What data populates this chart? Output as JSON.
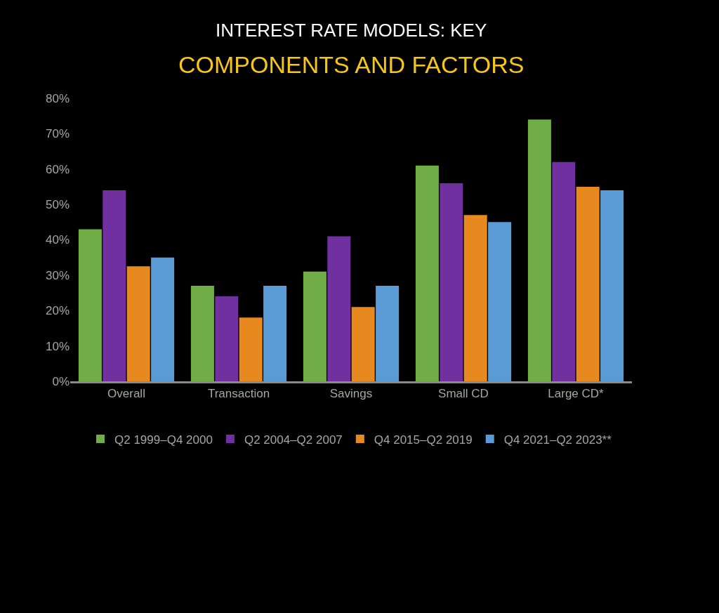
{
  "chart_data": {
    "type": "bar",
    "title": "INTEREST RATE MODELS: KEY",
    "subtitle": "COMPONENTS AND FACTORS",
    "categories": [
      "Overall",
      "Transaction",
      "Savings",
      "Small CD",
      "Large CD*"
    ],
    "series": [
      {
        "name": "Q2 1999–Q4 2000",
        "color": "#70ad47",
        "values": [
          43,
          27,
          31,
          61,
          74
        ]
      },
      {
        "name": "Q2 2004–Q2 2007",
        "color": "#7030a0",
        "values": [
          54,
          24,
          41,
          56,
          62
        ]
      },
      {
        "name": "Q4 2015–Q2 2019",
        "color": "#e8891f",
        "values": [
          32.5,
          18,
          21,
          47,
          55
        ]
      },
      {
        "name": "Q4 2021–Q2 2023**",
        "color": "#5b9bd5",
        "values": [
          35,
          27,
          27,
          45,
          54
        ]
      }
    ],
    "ylim": [
      0,
      80
    ],
    "yticks": [
      {
        "value": 0,
        "label": "0%"
      },
      {
        "value": 10,
        "label": "10%"
      },
      {
        "value": 20,
        "label": "20%"
      },
      {
        "value": 30,
        "label": "30%"
      },
      {
        "value": 40,
        "label": "40%"
      },
      {
        "value": 50,
        "label": "50%"
      },
      {
        "value": 60,
        "label": "60%"
      },
      {
        "value": 70,
        "label": "70%"
      },
      {
        "value": 80,
        "label": "80%"
      }
    ],
    "grid": false,
    "legend": "bottom"
  }
}
